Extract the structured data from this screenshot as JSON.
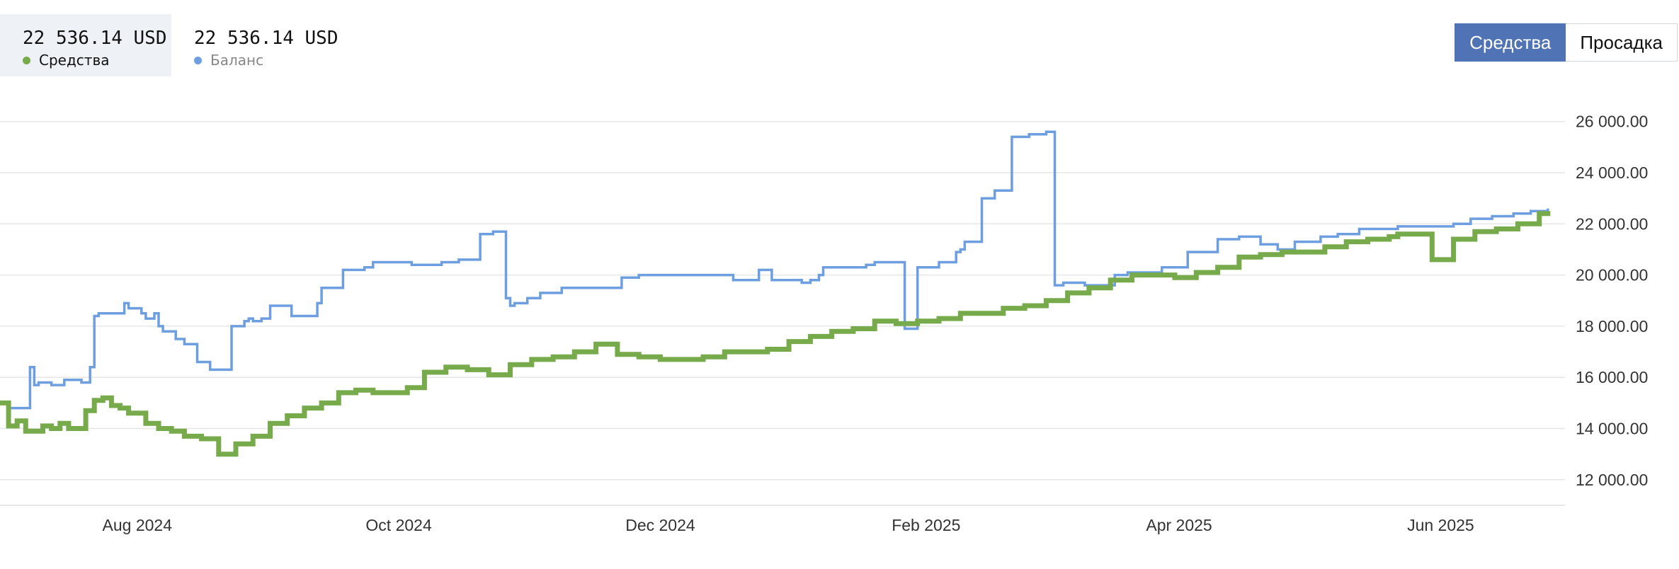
{
  "legend": {
    "equity": {
      "value": "22 536.14 USD",
      "label": "Средства",
      "color": "#76aa4a"
    },
    "balance": {
      "value": "22 536.14 USD",
      "label": "Баланс",
      "color": "#6d9ee0"
    }
  },
  "toggle": {
    "equity_label": "Средства",
    "drawdown_label": "Просадка",
    "active_color": "#4f73b4"
  },
  "chart_data": {
    "type": "line",
    "x_type": "date",
    "xlim": [
      "2024-06-30",
      "2025-06-30"
    ],
    "ylim": [
      11000,
      26600
    ],
    "y_ticks": [
      {
        "value": 12000,
        "label": "12 000.00"
      },
      {
        "value": 14000,
        "label": "14 000.00"
      },
      {
        "value": 16000,
        "label": "16 000.00"
      },
      {
        "value": 18000,
        "label": "18 000.00"
      },
      {
        "value": 20000,
        "label": "20 000.00"
      },
      {
        "value": 22000,
        "label": "22 000.00"
      },
      {
        "value": 24000,
        "label": "24 000.00"
      },
      {
        "value": 26000,
        "label": "26 000.00"
      }
    ],
    "x_ticks": [
      {
        "value": "2024-08-01",
        "label": "Aug 2024"
      },
      {
        "value": "2024-10-01",
        "label": "Oct 2024"
      },
      {
        "value": "2024-12-01",
        "label": "Dec 2024"
      },
      {
        "value": "2025-02-01",
        "label": "Feb 2025"
      },
      {
        "value": "2025-04-01",
        "label": "Apr 2025"
      },
      {
        "value": "2025-06-01",
        "label": "Jun 2025"
      }
    ],
    "grid": true,
    "series": [
      {
        "name": "Баланс",
        "color": "#6d9ee0",
        "x": [
          "2024-06-30",
          "2024-07-02",
          "2024-07-07",
          "2024-07-08",
          "2024-07-09",
          "2024-07-12",
          "2024-07-15",
          "2024-07-19",
          "2024-07-21",
          "2024-07-22",
          "2024-07-23",
          "2024-07-29",
          "2024-07-30",
          "2024-08-02",
          "2024-08-03",
          "2024-08-05",
          "2024-08-06",
          "2024-08-07",
          "2024-08-10",
          "2024-08-12",
          "2024-08-15",
          "2024-08-18",
          "2024-08-20",
          "2024-08-23",
          "2024-08-26",
          "2024-08-27",
          "2024-08-28",
          "2024-08-30",
          "2024-09-01",
          "2024-09-06",
          "2024-09-12",
          "2024-09-13",
          "2024-09-18",
          "2024-09-23",
          "2024-09-25",
          "2024-09-26",
          "2024-09-30",
          "2024-10-04",
          "2024-10-11",
          "2024-10-15",
          "2024-10-20",
          "2024-10-23",
          "2024-10-26",
          "2024-10-27",
          "2024-10-28",
          "2024-10-31",
          "2024-11-03",
          "2024-11-08",
          "2024-11-12",
          "2024-11-22",
          "2024-11-26",
          "2024-11-29",
          "2024-12-02",
          "2024-12-04",
          "2024-12-12",
          "2024-12-18",
          "2024-12-24",
          "2024-12-27",
          "2025-01-03",
          "2025-01-04",
          "2025-01-05",
          "2025-01-06",
          "2025-01-07",
          "2025-01-08",
          "2025-01-10",
          "2025-01-18",
          "2025-01-20",
          "2025-01-21",
          "2025-01-22",
          "2025-01-27",
          "2025-01-30",
          "2025-02-04",
          "2025-02-08",
          "2025-02-09",
          "2025-02-10",
          "2025-02-14",
          "2025-02-17",
          "2025-02-21",
          "2025-02-25",
          "2025-03-01",
          "2025-03-03",
          "2025-03-05",
          "2025-03-10",
          "2025-03-17",
          "2025-03-20",
          "2025-03-24",
          "2025-03-28",
          "2025-04-03",
          "2025-04-10",
          "2025-04-15",
          "2025-04-20",
          "2025-04-24",
          "2025-04-28",
          "2025-05-04",
          "2025-05-08",
          "2025-05-13",
          "2025-05-18",
          "2025-05-22",
          "2025-05-26",
          "2025-05-30",
          "2025-06-04",
          "2025-06-08",
          "2025-06-13",
          "2025-06-18",
          "2025-06-22",
          "2025-06-26"
        ],
        "y": [
          15000,
          14800,
          16400,
          15700,
          15800,
          15700,
          15900,
          15800,
          16400,
          18400,
          18500,
          18900,
          18700,
          18500,
          18300,
          18500,
          18000,
          17800,
          17500,
          17300,
          16600,
          16300,
          16300,
          18000,
          18200,
          18300,
          18200,
          18300,
          18800,
          18400,
          18900,
          19500,
          20200,
          20300,
          20500,
          20500,
          20500,
          20400,
          20500,
          20600,
          21600,
          21700,
          19100,
          18800,
          18900,
          19100,
          19300,
          19500,
          19500,
          19900,
          20000,
          20000,
          20000,
          20000,
          20000,
          19800,
          20200,
          19800,
          19700,
          19700,
          19800,
          19800,
          20000,
          20300,
          20300,
          20400,
          20500,
          20500,
          20500,
          17900,
          20300,
          20500,
          20900,
          21000,
          21300,
          23000,
          23300,
          25400,
          25500,
          25600,
          19600,
          19700,
          19600,
          20000,
          20100,
          20100,
          20300,
          20900,
          21400,
          21500,
          21200,
          21000,
          21300,
          21500,
          21600,
          21800,
          21800,
          21900,
          21900,
          21900,
          22000,
          22200,
          22300,
          22400,
          22500,
          22600
        ]
      },
      {
        "name": "Средства",
        "color": "#76aa4a",
        "x": [
          "2024-06-30",
          "2024-07-02",
          "2024-07-04",
          "2024-07-06",
          "2024-07-08",
          "2024-07-10",
          "2024-07-12",
          "2024-07-14",
          "2024-07-16",
          "2024-07-18",
          "2024-07-20",
          "2024-07-22",
          "2024-07-24",
          "2024-07-26",
          "2024-07-28",
          "2024-07-30",
          "2024-08-01",
          "2024-08-03",
          "2024-08-06",
          "2024-08-09",
          "2024-08-12",
          "2024-08-16",
          "2024-08-20",
          "2024-08-24",
          "2024-08-28",
          "2024-09-01",
          "2024-09-05",
          "2024-09-09",
          "2024-09-13",
          "2024-09-17",
          "2024-09-21",
          "2024-09-25",
          "2024-09-29",
          "2024-10-03",
          "2024-10-07",
          "2024-10-12",
          "2024-10-17",
          "2024-10-22",
          "2024-10-27",
          "2024-11-01",
          "2024-11-06",
          "2024-11-11",
          "2024-11-16",
          "2024-11-21",
          "2024-11-26",
          "2024-12-01",
          "2024-12-06",
          "2024-12-11",
          "2024-12-16",
          "2024-12-21",
          "2024-12-26",
          "2024-12-31",
          "2025-01-05",
          "2025-01-10",
          "2025-01-15",
          "2025-01-20",
          "2025-01-25",
          "2025-01-30",
          "2025-02-04",
          "2025-02-09",
          "2025-02-14",
          "2025-02-19",
          "2025-02-24",
          "2025-03-01",
          "2025-03-06",
          "2025-03-11",
          "2025-03-16",
          "2025-03-21",
          "2025-03-26",
          "2025-03-31",
          "2025-04-05",
          "2025-04-10",
          "2025-04-15",
          "2025-04-20",
          "2025-04-25",
          "2025-04-30",
          "2025-05-05",
          "2025-05-10",
          "2025-05-15",
          "2025-05-20",
          "2025-05-22",
          "2025-05-25",
          "2025-05-30",
          "2025-06-04",
          "2025-06-09",
          "2025-06-14",
          "2025-06-19",
          "2025-06-24",
          "2025-06-26"
        ],
        "y": [
          15000,
          14100,
          14300,
          13900,
          13900,
          14100,
          14000,
          14200,
          14000,
          14000,
          14700,
          15100,
          15200,
          14900,
          14800,
          14600,
          14600,
          14200,
          14000,
          13900,
          13700,
          13600,
          13000,
          13400,
          13700,
          14200,
          14500,
          14800,
          15000,
          15400,
          15500,
          15400,
          15400,
          15600,
          16200,
          16400,
          16300,
          16100,
          16500,
          16700,
          16800,
          17000,
          17300,
          16900,
          16800,
          16700,
          16700,
          16800,
          17000,
          17000,
          17100,
          17400,
          17600,
          17800,
          17900,
          18200,
          18100,
          18200,
          18300,
          18500,
          18500,
          18700,
          18800,
          19000,
          19300,
          19500,
          19800,
          20000,
          20000,
          19900,
          20100,
          20300,
          20700,
          20800,
          20900,
          20900,
          21100,
          21300,
          21400,
          21500,
          21600,
          21600,
          20600,
          21400,
          21700,
          21800,
          22000,
          22400,
          22500
        ]
      }
    ]
  }
}
